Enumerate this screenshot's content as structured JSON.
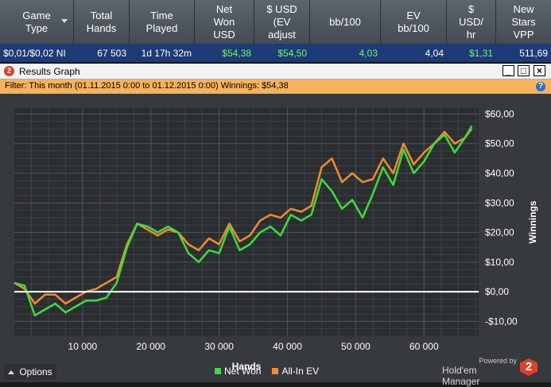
{
  "stats_table": {
    "headers": [
      {
        "label": "Game\nType",
        "sortable": true
      },
      {
        "label": "Total\nHands"
      },
      {
        "label": "Time\nPlayed"
      },
      {
        "label": "Net\nWon\nUSD"
      },
      {
        "label": "$ USD\n(EV\nadjust"
      },
      {
        "label": "bb/100"
      },
      {
        "label": "EV\nbb/100"
      },
      {
        "label": "$\nUSD/\nhr"
      },
      {
        "label": "New\nStars\nVPP"
      }
    ],
    "row": [
      "$0,01/$0,02 NI",
      "67 503",
      "1d 17h 32m",
      "$54,38",
      "$54,50",
      "4,03",
      "4,04",
      "$1,31",
      "511,69"
    ]
  },
  "window": {
    "app_icon": "2",
    "title": "Results Graph",
    "filter_text": "Filter: This month (01.11.2015 0:00 to 01.12.2015 0:00) Winnings: $54,38",
    "help_icon": "?",
    "minimize": "_",
    "maximize": "□",
    "close": "×"
  },
  "chart_data": {
    "type": "line",
    "xlabel": "Hands",
    "ylabel": "Winnings",
    "xlim": [
      0,
      68000
    ],
    "ylim": [
      -15,
      62
    ],
    "x_ticks": [
      10000,
      20000,
      30000,
      40000,
      50000,
      60000
    ],
    "x_tick_labels": [
      "10 000",
      "20 000",
      "30 000",
      "40 000",
      "50 000",
      "60 000"
    ],
    "y_ticks": [
      -10,
      0,
      10,
      20,
      30,
      40,
      50,
      60
    ],
    "y_tick_labels": [
      "-$10,00",
      "$0,00",
      "$10,00",
      "$20,00",
      "$30,00",
      "$40,00",
      "$50,00",
      "$60,00"
    ],
    "grid": true,
    "legend_position": "bottom",
    "colors": {
      "net_won": "#3ddc3d",
      "allin_ev": "#f08c2c",
      "zero_line": "#ffffff"
    },
    "x": [
      0,
      1500,
      3000,
      4500,
      6000,
      7500,
      9000,
      10500,
      12000,
      13500,
      15000,
      16500,
      18000,
      19500,
      21000,
      22500,
      24000,
      25500,
      27000,
      28500,
      30000,
      31500,
      33000,
      34500,
      36000,
      37500,
      39000,
      40500,
      42000,
      43500,
      45000,
      46500,
      48000,
      49500,
      51000,
      52500,
      54000,
      55500,
      57000,
      58500,
      60000,
      61500,
      63000,
      64500,
      66000,
      67000
    ],
    "series": [
      {
        "name": "Net Won",
        "values": [
          3,
          2,
          -8,
          -6,
          -4,
          -7,
          -5,
          -3,
          -3,
          -2,
          3,
          15,
          23,
          22,
          20,
          22,
          20,
          13,
          10,
          14,
          13,
          22,
          14,
          16,
          20,
          22,
          19,
          26,
          24,
          26,
          38,
          34,
          28,
          31,
          25,
          33,
          42,
          36,
          48,
          40,
          44,
          50,
          53,
          47,
          52,
          56
        ]
      },
      {
        "name": "All-In EV",
        "values": [
          3,
          1,
          -4,
          -1,
          -1,
          -4,
          -2,
          0,
          1,
          3,
          5,
          16,
          23,
          21,
          19,
          21,
          20,
          16,
          14,
          18,
          16,
          23,
          17,
          19,
          24,
          26,
          25,
          28,
          27,
          29,
          42,
          45,
          37,
          40,
          37,
          38,
          45,
          40,
          50,
          43,
          47,
          50,
          54,
          50,
          52,
          55
        ]
      }
    ]
  },
  "options": {
    "label": "Options"
  },
  "legend": [
    {
      "label": "Net Won",
      "color": "#3ddc3d"
    },
    {
      "label": "All-In EV",
      "color": "#f08c2c"
    }
  ],
  "branding": {
    "powered": "Powered by",
    "name": "Hold'em Manager",
    "logo": "2"
  }
}
